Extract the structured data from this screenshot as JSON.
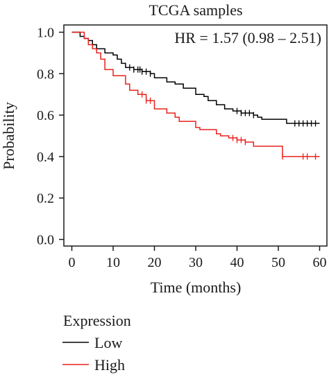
{
  "chart_data": {
    "type": "line",
    "title": "TCGA samples",
    "annotation": "HR = 1.57 (0.98 – 2.51)",
    "xlabel": "Time (months)",
    "ylabel": "Probability",
    "xlim": [
      0,
      60
    ],
    "ylim": [
      0,
      1
    ],
    "x_ticks": [
      0,
      10,
      20,
      30,
      40,
      50,
      60
    ],
    "y_ticks": [
      0.0,
      0.2,
      0.4,
      0.6,
      0.8,
      1.0
    ],
    "x_tick_labels": [
      "0",
      "10",
      "20",
      "30",
      "40",
      "50",
      "60"
    ],
    "y_tick_labels": [
      "0.0",
      "0.2",
      "0.4",
      "0.6",
      "0.8",
      "1.0"
    ],
    "step": true,
    "grid": false,
    "legend": {
      "title": "Expression",
      "position": "bottom-left"
    },
    "series": [
      {
        "name": "Low",
        "color": "#000000",
        "x": [
          0,
          2,
          3,
          4,
          5,
          6,
          8,
          10,
          11,
          12,
          13,
          15,
          17,
          19,
          20,
          23,
          25,
          27,
          30,
          32,
          33,
          35,
          37,
          39,
          41,
          44,
          45,
          46,
          52,
          60
        ],
        "y": [
          1.0,
          0.98,
          0.97,
          0.96,
          0.94,
          0.92,
          0.9,
          0.89,
          0.87,
          0.85,
          0.83,
          0.82,
          0.81,
          0.8,
          0.78,
          0.76,
          0.75,
          0.73,
          0.7,
          0.69,
          0.67,
          0.65,
          0.63,
          0.62,
          0.61,
          0.6,
          0.59,
          0.58,
          0.56,
          0.56
        ],
        "censor_x": [
          14,
          15,
          16,
          16.5,
          17,
          18,
          19,
          40,
          41,
          42,
          43,
          44,
          54,
          55,
          56,
          57,
          58,
          59
        ]
      },
      {
        "name": "High",
        "color": "#e8211b",
        "x": [
          0,
          3,
          4,
          5,
          6,
          7,
          8,
          10,
          13,
          14,
          16,
          18,
          20,
          23,
          25,
          26,
          30,
          31,
          35,
          36,
          38,
          40,
          42,
          44,
          51,
          60
        ],
        "y": [
          1.0,
          0.97,
          0.94,
          0.92,
          0.9,
          0.87,
          0.82,
          0.79,
          0.75,
          0.72,
          0.7,
          0.67,
          0.63,
          0.61,
          0.59,
          0.57,
          0.54,
          0.53,
          0.51,
          0.5,
          0.49,
          0.48,
          0.47,
          0.45,
          0.4,
          0.4
        ],
        "censor_x": [
          17,
          18,
          19,
          39,
          40,
          41,
          42,
          51,
          56,
          57,
          59
        ]
      }
    ]
  }
}
